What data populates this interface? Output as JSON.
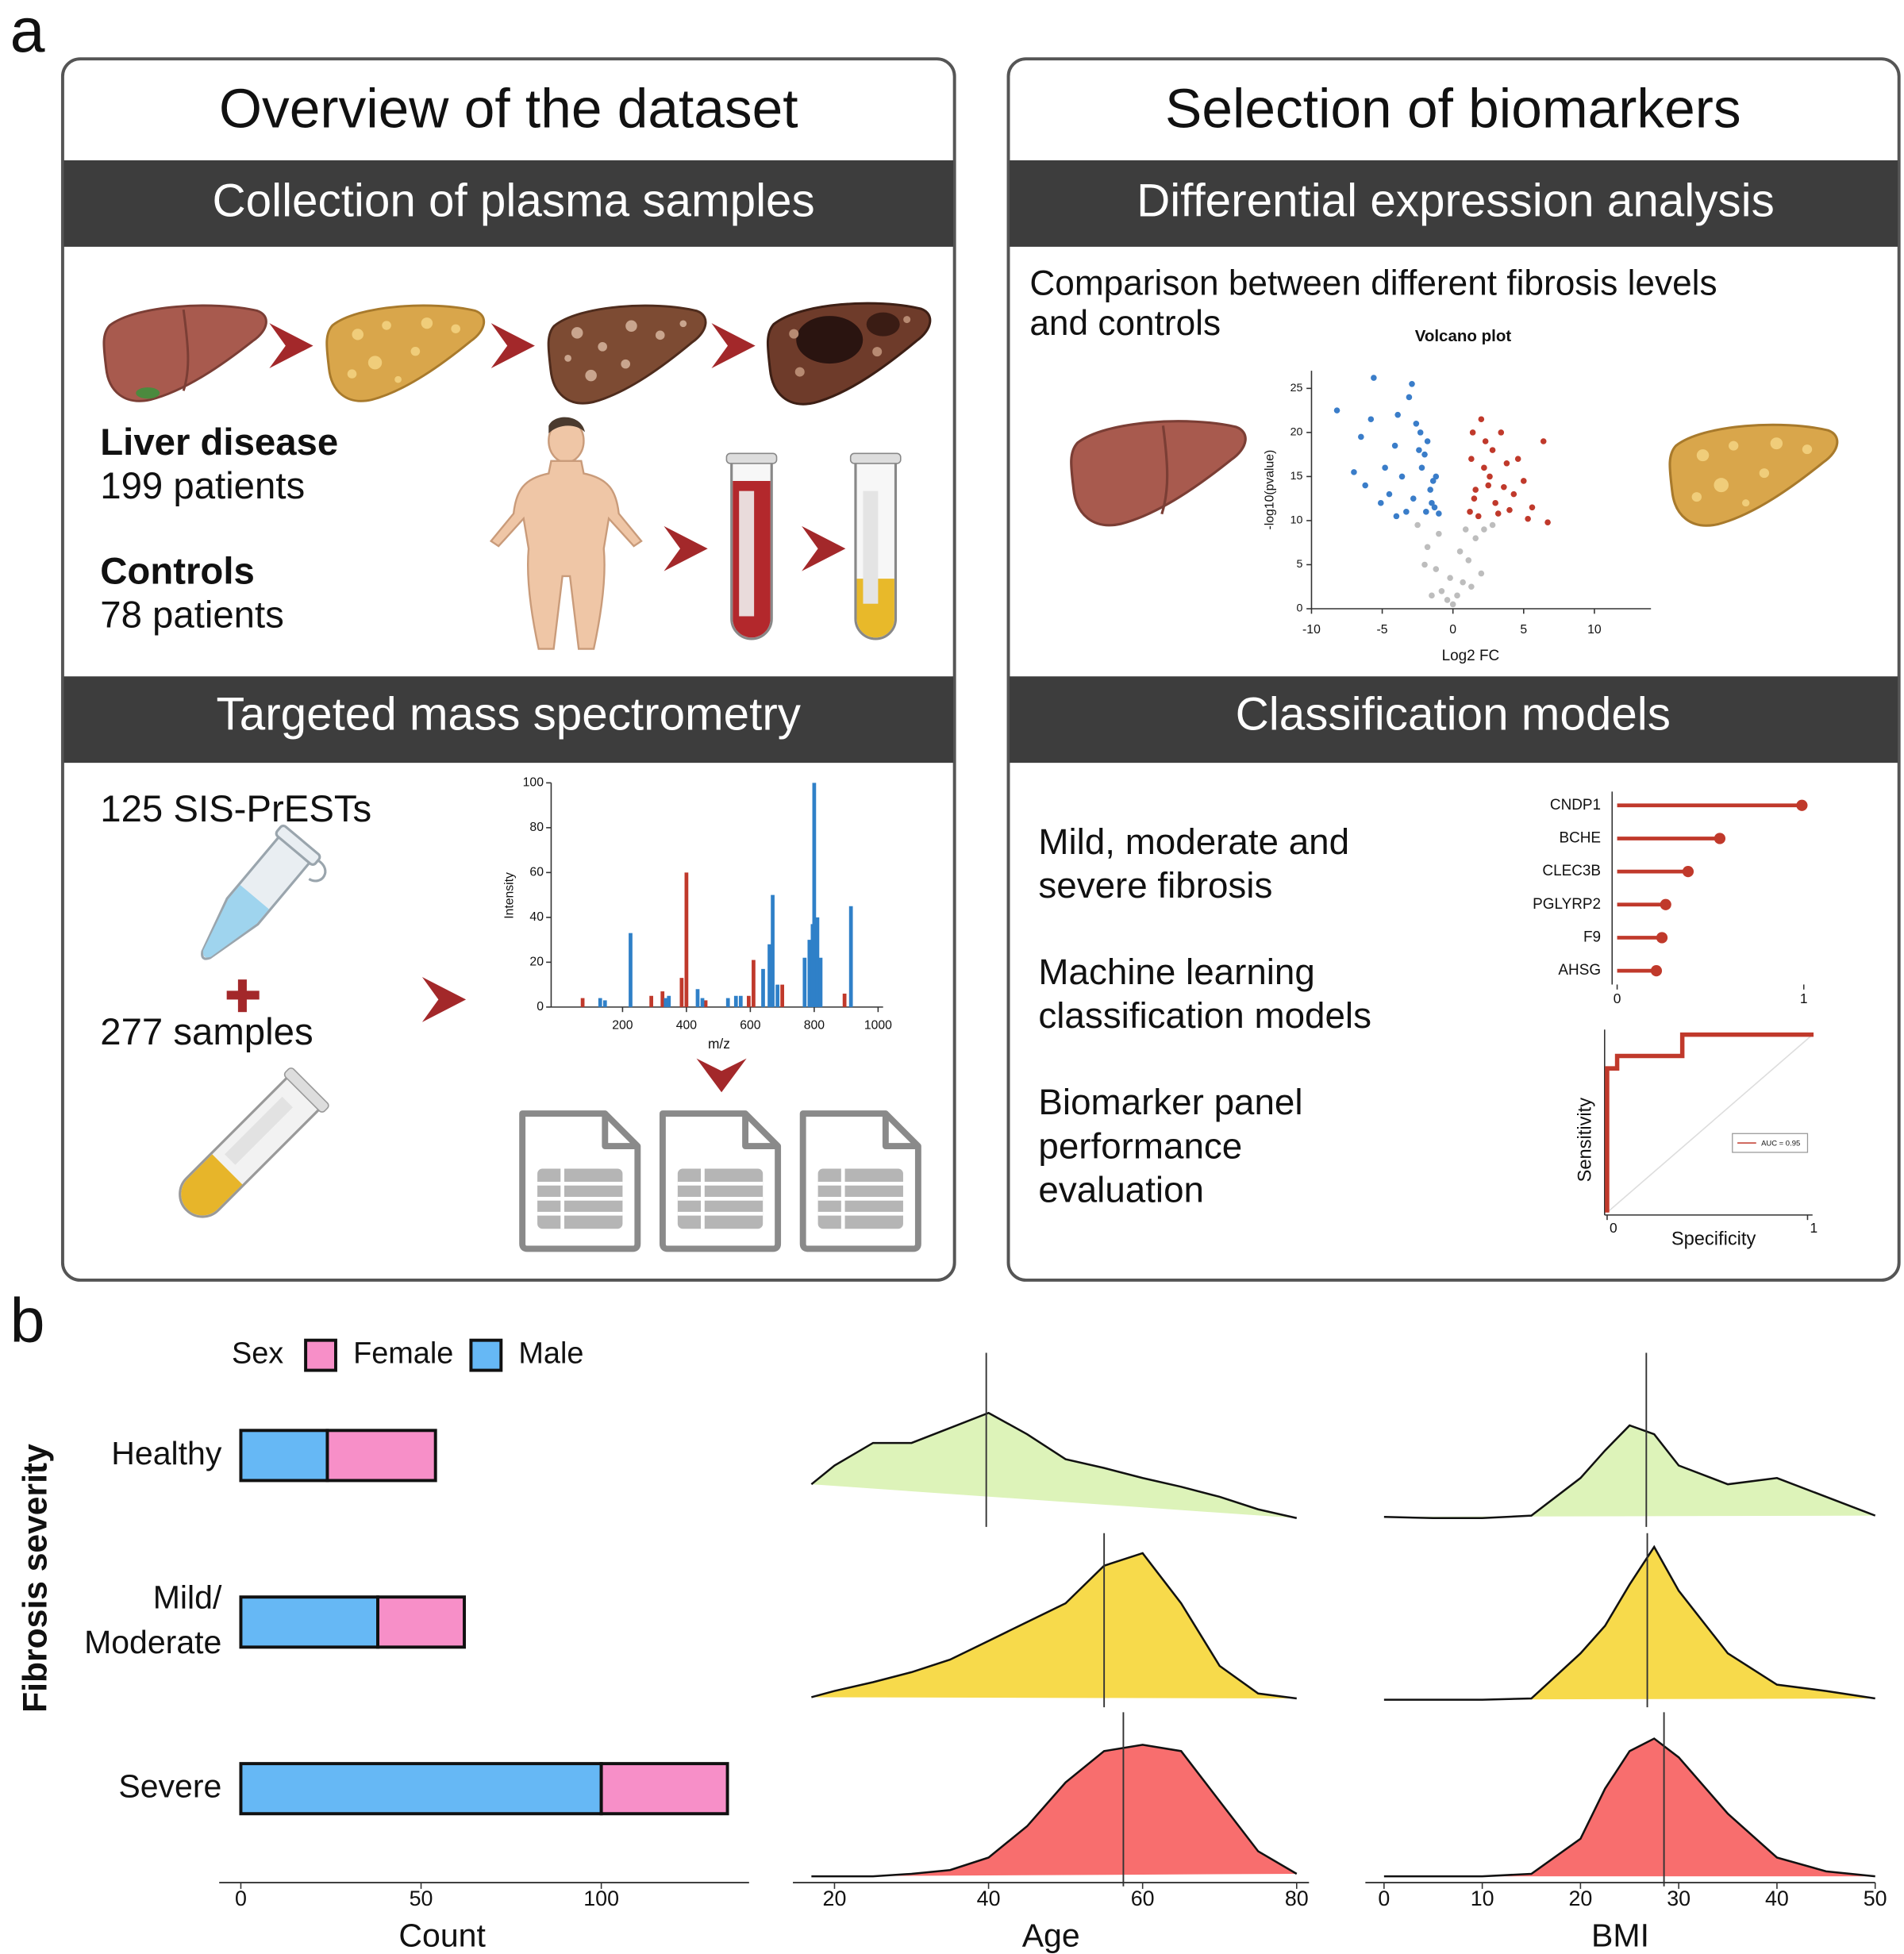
{
  "panel_a": {
    "label": "a",
    "overview": {
      "title": "Overview of the dataset",
      "collection_header": "Collection of plasma samples",
      "liver_disease": "Liver disease",
      "liver_disease_count": "199 patients",
      "controls": "Controls",
      "controls_count": "78 patients",
      "ms_header": "Targeted mass spectrometry",
      "sis_prests": "125 SIS-PrESTs",
      "samples": "277 samples"
    },
    "selection": {
      "title": "Selection of biomarkers",
      "dea_header": "Differential expression analysis",
      "comparison": [
        "Comparison  between  different  fibrosis  levels",
        "and controls"
      ],
      "models_header": "Classification models",
      "steps": [
        [
          "Mild, moderate and",
          "severe fibrosis"
        ],
        [
          "Machine learning",
          "classification models"
        ],
        [
          "Biomarker  panel",
          "performance",
          "evaluation"
        ]
      ]
    }
  },
  "panel_b_label": "b",
  "chart_data": [
    {
      "type": "scatter",
      "title": "Volcano plot",
      "x_label": "Log2 FC",
      "y_label": "-log10(pvalue)",
      "xlim": [
        -10,
        14
      ],
      "ylim": [
        0,
        27
      ],
      "xticks": [
        -10,
        -5,
        0,
        5,
        10
      ],
      "yticks": [
        0,
        5,
        10,
        15,
        20,
        25
      ],
      "series": [
        {
          "color": "#bdbdbd",
          "x": [
            -2.5,
            -1.8,
            -1.2,
            -0.8,
            -0.4,
            0,
            0.3,
            0.7,
            1.1,
            1.6,
            2.2,
            2.8,
            -2.0,
            -1.0,
            -0.2,
            0.5,
            1.3,
            2.0,
            -1.5,
            0.9
          ],
          "values": [
            9.5,
            7.0,
            4.5,
            2.0,
            1.0,
            0.5,
            1.5,
            3.0,
            5.5,
            8.0,
            9.0,
            9.5,
            5.0,
            8.5,
            3.5,
            6.5,
            2.5,
            4.0,
            1.5,
            9.0
          ]
        },
        {
          "color": "#3a7dc9",
          "x": [
            -8.2,
            -6.5,
            -5.6,
            -4.8,
            -3.1,
            -2.9,
            -2.3,
            -6.2,
            -5.1,
            -4.1,
            -3.6,
            -2.6,
            -2.0,
            -1.6,
            -1.3,
            -1.0,
            -7.0,
            -4.5,
            -3.3,
            -2.2,
            -1.8,
            -1.4,
            -5.8,
            -4.0,
            -2.8,
            -1.9,
            -1.2,
            -3.9,
            -2.4,
            -1.5
          ],
          "values": [
            22.5,
            19.5,
            26.2,
            16.0,
            24.0,
            25.5,
            20.0,
            14.0,
            12.0,
            18.5,
            15.0,
            21.0,
            17.5,
            13.5,
            11.5,
            10.8,
            15.5,
            13.0,
            11.0,
            16.0,
            19.0,
            14.5,
            21.5,
            10.5,
            12.5,
            11.0,
            15.0,
            22.0,
            18.0,
            12.0
          ]
        },
        {
          "color": "#c0392b",
          "x": [
            1.3,
            1.6,
            2.0,
            2.3,
            2.6,
            3.0,
            3.4,
            3.8,
            4.3,
            5.0,
            5.6,
            6.4,
            1.2,
            1.8,
            2.2,
            2.8,
            3.2,
            4.0,
            4.6,
            1.5,
            2.5,
            3.6,
            5.3,
            6.7,
            1.4
          ],
          "values": [
            17.0,
            13.5,
            21.5,
            19.0,
            15.0,
            12.0,
            20.0,
            16.5,
            13.0,
            14.5,
            11.5,
            19.0,
            11.0,
            10.5,
            16.0,
            18.0,
            10.8,
            11.2,
            17.0,
            12.5,
            14.0,
            13.8,
            10.2,
            9.8,
            20.0
          ]
        }
      ]
    },
    {
      "type": "bar",
      "x_label": "m/z",
      "y_label": "Intensity",
      "xlim": [
        0,
        1000
      ],
      "ylim": [
        0,
        100
      ],
      "xticks": [
        200,
        400,
        600,
        800,
        1000
      ],
      "yticks": [
        0,
        20,
        40,
        60,
        80,
        100
      ],
      "series": [
        {
          "color": "#c0392b",
          "x": [
            75,
            290,
            325,
            385,
            400,
            460,
            595,
            610,
            700,
            895
          ],
          "values": [
            4,
            5,
            7,
            13,
            60,
            3,
            5,
            21,
            10,
            6
          ]
        },
        {
          "color": "#2f80c8",
          "x": [
            130,
            145,
            225,
            335,
            345,
            435,
            450,
            530,
            555,
            570,
            640,
            660,
            670,
            685,
            770,
            785,
            795,
            800,
            810,
            820,
            915
          ],
          "values": [
            4,
            3,
            33,
            4,
            5,
            8,
            4,
            4,
            5,
            5,
            17,
            28,
            50,
            10,
            22,
            30,
            37,
            100,
            40,
            22,
            45
          ]
        }
      ]
    },
    {
      "type": "lollipop",
      "categories": [
        "CNDP1",
        "BCHE",
        "CLEC3B",
        "PGLYRP2",
        "F9",
        "AHSG"
      ],
      "values": [
        0.99,
        0.55,
        0.38,
        0.26,
        0.24,
        0.21
      ],
      "color": "#c0392b",
      "xlim": [
        0,
        1
      ],
      "xticks": [
        0,
        1
      ]
    },
    {
      "type": "line",
      "x_label": "Specificity",
      "y_label": "Sensitivity",
      "xlim": [
        0,
        1
      ],
      "ylim": [
        0,
        1
      ],
      "xticks": [
        0,
        1
      ],
      "series": [
        {
          "name": "AUC = 0.95",
          "color": "#c0392b",
          "x": [
            0,
            0,
            0.05,
            0.05,
            0.375,
            0.375,
            1.03
          ],
          "values": [
            0,
            0.81,
            0.81,
            0.88,
            0.88,
            1,
            1
          ]
        }
      ]
    },
    {
      "type": "stacked_hbar",
      "x_label": "Count",
      "y_label": "Fibrosis severity",
      "legend_title": "Sex",
      "categories": [
        "Healthy",
        "Mild/\nModerate",
        "Severe"
      ],
      "xlim": [
        -6,
        141
      ],
      "xticks": [
        0,
        50,
        100
      ],
      "series": [
        {
          "name": "Female",
          "color": "#f78fc8",
          "values": [
            30,
            24,
            35
          ]
        },
        {
          "name": "Male",
          "color": "#66b8f5",
          "values": [
            24,
            38,
            100
          ]
        }
      ]
    },
    {
      "type": "ridgeline",
      "x_label": "Age",
      "xlim": [
        14.6,
        81.6
      ],
      "xticks": [
        20,
        40,
        60,
        80
      ],
      "x": [
        17,
        20,
        25,
        30,
        35,
        40,
        45,
        50,
        55,
        60,
        65,
        70,
        75,
        80
      ],
      "series": [
        {
          "color": "#ddf3b9",
          "median": 39.7,
          "values": [
            0.28,
            0.43,
            0.61,
            0.61,
            0.73,
            0.85,
            0.68,
            0.48,
            0.41,
            0.33,
            0.26,
            0.18,
            0.08,
            0.01
          ]
        },
        {
          "color": "#f7da4b",
          "median": 55,
          "values": [
            0.02,
            0.07,
            0.14,
            0.22,
            0.32,
            0.47,
            0.62,
            0.77,
            1.07,
            1.17,
            0.77,
            0.27,
            0.05,
            0.01
          ]
        },
        {
          "color": "#f86e6e",
          "median": 57.5,
          "values": [
            0.02,
            0.02,
            0.02,
            0.04,
            0.07,
            0.17,
            0.42,
            0.77,
            1.02,
            1.07,
            1.02,
            0.62,
            0.22,
            0.04
          ]
        }
      ]
    },
    {
      "type": "ridgeline",
      "x_label": "BMI",
      "xlim": [
        -1.9,
        50
      ],
      "xticks": [
        0,
        10,
        20,
        30,
        40,
        50
      ],
      "x": [
        0,
        5,
        10,
        15,
        20,
        22.5,
        25,
        27.5,
        30,
        35,
        40,
        45,
        50
      ],
      "series": [
        {
          "color": "#ddf3b9",
          "median": 26.7,
          "values": [
            0.02,
            0.01,
            0.01,
            0.03,
            0.33,
            0.55,
            0.75,
            0.68,
            0.43,
            0.28,
            0.33,
            0.18,
            0.03
          ]
        },
        {
          "color": "#f7da4b",
          "median": 26.8,
          "values": [
            0,
            0,
            0,
            0.01,
            0.37,
            0.59,
            0.92,
            1.22,
            0.87,
            0.37,
            0.12,
            0.07,
            0.01
          ]
        },
        {
          "color": "#f86e6e",
          "median": 28.5,
          "values": [
            0.02,
            0.02,
            0.02,
            0.04,
            0.32,
            0.72,
            1.02,
            1.12,
            0.97,
            0.52,
            0.17,
            0.06,
            0.02
          ]
        }
      ]
    }
  ]
}
